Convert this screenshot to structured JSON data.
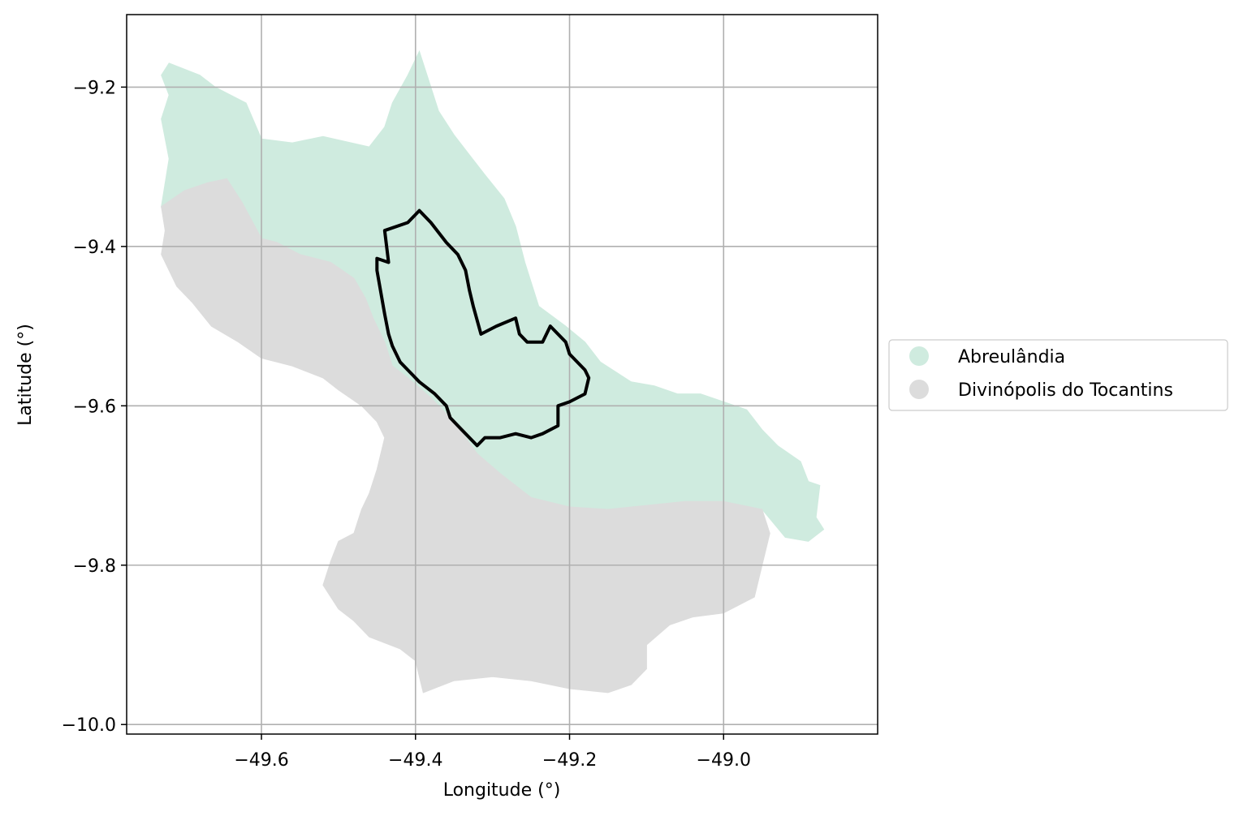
{
  "map": {
    "xlabel": "Longitude (°)",
    "ylabel": "Latitude (°)",
    "xlim": [
      -49.775,
      -48.8
    ],
    "ylim": [
      -10.012,
      -9.109
    ],
    "x_ticks": [
      {
        "value": -49.6,
        "label": "−49.6"
      },
      {
        "value": -49.4,
        "label": "−49.4"
      },
      {
        "value": -49.2,
        "label": "−49.2"
      },
      {
        "value": -49.0,
        "label": "−49.0"
      }
    ],
    "y_ticks": [
      {
        "value": -9.2,
        "label": "−9.2"
      },
      {
        "value": -9.4,
        "label": "−9.4"
      },
      {
        "value": -9.6,
        "label": "−9.6"
      },
      {
        "value": -9.8,
        "label": "−9.8"
      },
      {
        "value": -10.0,
        "label": "−10.0"
      }
    ],
    "grid": true,
    "legend_position": "outside-right",
    "legend": [
      {
        "label": "Abreulândia",
        "color": "#cfebdf"
      },
      {
        "label": "Divinópolis do Tocantins",
        "color": "#dcdcdc"
      }
    ],
    "regions": [
      {
        "name": "Abreulândia",
        "color": "#cfebdf",
        "coords": [
          [
            -49.72,
            -9.17
          ],
          [
            -49.68,
            -9.185
          ],
          [
            -49.66,
            -9.2
          ],
          [
            -49.62,
            -9.22
          ],
          [
            -49.6,
            -9.265
          ],
          [
            -49.56,
            -9.27
          ],
          [
            -49.52,
            -9.262
          ],
          [
            -49.46,
            -9.275
          ],
          [
            -49.44,
            -9.25
          ],
          [
            -49.43,
            -9.22
          ],
          [
            -49.41,
            -9.185
          ],
          [
            -49.395,
            -9.155
          ],
          [
            -49.385,
            -9.185
          ],
          [
            -49.37,
            -9.23
          ],
          [
            -49.35,
            -9.26
          ],
          [
            -49.33,
            -9.285
          ],
          [
            -49.31,
            -9.31
          ],
          [
            -49.285,
            -9.34
          ],
          [
            -49.27,
            -9.375
          ],
          [
            -49.258,
            -9.42
          ],
          [
            -49.24,
            -9.475
          ],
          [
            -49.205,
            -9.5
          ],
          [
            -49.18,
            -9.52
          ],
          [
            -49.16,
            -9.545
          ],
          [
            -49.12,
            -9.57
          ],
          [
            -49.09,
            -9.575
          ],
          [
            -49.06,
            -9.585
          ],
          [
            -49.03,
            -9.585
          ],
          [
            -49.0,
            -9.595
          ],
          [
            -48.97,
            -9.605
          ],
          [
            -48.95,
            -9.63
          ],
          [
            -48.93,
            -9.65
          ],
          [
            -48.9,
            -9.67
          ],
          [
            -48.89,
            -9.695
          ],
          [
            -48.875,
            -9.7
          ],
          [
            -48.88,
            -9.74
          ],
          [
            -48.87,
            -9.755
          ],
          [
            -48.89,
            -9.77
          ],
          [
            -48.92,
            -9.765
          ],
          [
            -48.95,
            -9.73
          ],
          [
            -49.0,
            -9.72
          ],
          [
            -49.05,
            -9.72
          ],
          [
            -49.1,
            -9.725
          ],
          [
            -49.15,
            -9.73
          ],
          [
            -49.2,
            -9.727
          ],
          [
            -49.25,
            -9.715
          ],
          [
            -49.29,
            -9.685
          ],
          [
            -49.32,
            -9.66
          ],
          [
            -49.35,
            -9.62
          ],
          [
            -49.38,
            -9.59
          ],
          [
            -49.41,
            -9.565
          ],
          [
            -49.43,
            -9.55
          ],
          [
            -49.44,
            -9.52
          ],
          [
            -49.455,
            -9.49
          ],
          [
            -49.465,
            -9.465
          ],
          [
            -49.48,
            -9.44
          ],
          [
            -49.51,
            -9.42
          ],
          [
            -49.55,
            -9.41
          ],
          [
            -49.58,
            -9.395
          ],
          [
            -49.6,
            -9.39
          ],
          [
            -49.625,
            -9.345
          ],
          [
            -49.645,
            -9.315
          ],
          [
            -49.67,
            -9.32
          ],
          [
            -49.7,
            -9.33
          ],
          [
            -49.73,
            -9.35
          ],
          [
            -49.72,
            -9.29
          ],
          [
            -49.73,
            -9.24
          ],
          [
            -49.72,
            -9.21
          ],
          [
            -49.73,
            -9.185
          ]
        ]
      },
      {
        "name": "Divinópolis do Tocantins",
        "color": "#dcdcdc",
        "coords": [
          [
            -49.73,
            -9.35
          ],
          [
            -49.7,
            -9.33
          ],
          [
            -49.67,
            -9.32
          ],
          [
            -49.645,
            -9.315
          ],
          [
            -49.625,
            -9.345
          ],
          [
            -49.6,
            -9.39
          ],
          [
            -49.58,
            -9.395
          ],
          [
            -49.55,
            -9.41
          ],
          [
            -49.51,
            -9.42
          ],
          [
            -49.48,
            -9.44
          ],
          [
            -49.465,
            -9.465
          ],
          [
            -49.455,
            -9.49
          ],
          [
            -49.44,
            -9.52
          ],
          [
            -49.43,
            -9.55
          ],
          [
            -49.41,
            -9.565
          ],
          [
            -49.38,
            -9.59
          ],
          [
            -49.35,
            -9.62
          ],
          [
            -49.32,
            -9.66
          ],
          [
            -49.29,
            -9.685
          ],
          [
            -49.25,
            -9.715
          ],
          [
            -49.2,
            -9.727
          ],
          [
            -49.15,
            -9.73
          ],
          [
            -49.1,
            -9.725
          ],
          [
            -49.05,
            -9.72
          ],
          [
            -49.0,
            -9.72
          ],
          [
            -48.95,
            -9.73
          ],
          [
            -48.94,
            -9.76
          ],
          [
            -48.95,
            -9.8
          ],
          [
            -48.96,
            -9.84
          ],
          [
            -49.0,
            -9.86
          ],
          [
            -49.04,
            -9.865
          ],
          [
            -49.07,
            -9.875
          ],
          [
            -49.1,
            -9.9
          ],
          [
            -49.1,
            -9.93
          ],
          [
            -49.12,
            -9.95
          ],
          [
            -49.15,
            -9.96
          ],
          [
            -49.2,
            -9.955
          ],
          [
            -49.25,
            -9.945
          ],
          [
            -49.3,
            -9.94
          ],
          [
            -49.35,
            -9.945
          ],
          [
            -49.39,
            -9.96
          ],
          [
            -49.4,
            -9.92
          ],
          [
            -49.42,
            -9.905
          ],
          [
            -49.46,
            -9.89
          ],
          [
            -49.48,
            -9.87
          ],
          [
            -49.5,
            -9.855
          ],
          [
            -49.52,
            -9.825
          ],
          [
            -49.51,
            -9.795
          ],
          [
            -49.5,
            -9.77
          ],
          [
            -49.48,
            -9.76
          ],
          [
            -49.47,
            -9.73
          ],
          [
            -49.46,
            -9.71
          ],
          [
            -49.45,
            -9.68
          ],
          [
            -49.44,
            -9.64
          ],
          [
            -49.45,
            -9.62
          ],
          [
            -49.47,
            -9.6
          ],
          [
            -49.5,
            -9.58
          ],
          [
            -49.52,
            -9.565
          ],
          [
            -49.56,
            -9.55
          ],
          [
            -49.6,
            -9.54
          ],
          [
            -49.63,
            -9.52
          ],
          [
            -49.665,
            -9.5
          ],
          [
            -49.69,
            -9.47
          ],
          [
            -49.71,
            -9.45
          ],
          [
            -49.72,
            -9.43
          ],
          [
            -49.73,
            -9.41
          ],
          [
            -49.725,
            -9.38
          ]
        ]
      }
    ],
    "outline": {
      "color": "#000000",
      "coords": [
        [
          -49.44,
          -9.38
        ],
        [
          -49.41,
          -9.37
        ],
        [
          -49.395,
          -9.355
        ],
        [
          -49.38,
          -9.37
        ],
        [
          -49.36,
          -9.395
        ],
        [
          -49.345,
          -9.41
        ],
        [
          -49.335,
          -9.43
        ],
        [
          -49.33,
          -9.455
        ],
        [
          -49.325,
          -9.475
        ],
        [
          -49.315,
          -9.51
        ],
        [
          -49.295,
          -9.5
        ],
        [
          -49.27,
          -9.49
        ],
        [
          -49.265,
          -9.51
        ],
        [
          -49.255,
          -9.52
        ],
        [
          -49.235,
          -9.52
        ],
        [
          -49.225,
          -9.5
        ],
        [
          -49.205,
          -9.52
        ],
        [
          -49.2,
          -9.535
        ],
        [
          -49.18,
          -9.555
        ],
        [
          -49.175,
          -9.565
        ],
        [
          -49.18,
          -9.585
        ],
        [
          -49.2,
          -9.595
        ],
        [
          -49.215,
          -9.6
        ],
        [
          -49.215,
          -9.625
        ],
        [
          -49.235,
          -9.635
        ],
        [
          -49.25,
          -9.64
        ],
        [
          -49.27,
          -9.635
        ],
        [
          -49.29,
          -9.64
        ],
        [
          -49.31,
          -9.64
        ],
        [
          -49.32,
          -9.65
        ],
        [
          -49.34,
          -9.63
        ],
        [
          -49.355,
          -9.615
        ],
        [
          -49.36,
          -9.6
        ],
        [
          -49.375,
          -9.585
        ],
        [
          -49.395,
          -9.57
        ],
        [
          -49.41,
          -9.555
        ],
        [
          -49.42,
          -9.545
        ],
        [
          -49.43,
          -9.525
        ],
        [
          -49.435,
          -9.51
        ],
        [
          -49.44,
          -9.485
        ],
        [
          -49.45,
          -9.43
        ],
        [
          -49.45,
          -9.415
        ],
        [
          -49.435,
          -9.42
        ]
      ]
    }
  }
}
